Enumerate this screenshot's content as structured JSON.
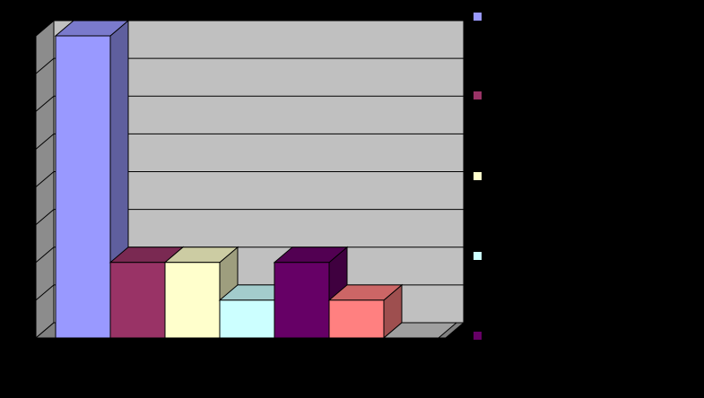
{
  "chart_data": {
    "type": "bar",
    "style": "3d-column",
    "title": "",
    "xlabel": "",
    "ylabel": "",
    "ylim": [
      0,
      8
    ],
    "grid": true,
    "legend_position": "right",
    "background_color": "#000000",
    "plot_color": "#c0c0c0",
    "categories": [
      "",
      "",
      "",
      "",
      "",
      "",
      ""
    ],
    "series": [
      {
        "values": [
          8,
          0,
          0,
          0,
          0,
          0,
          0
        ],
        "color": "#9999ff"
      },
      {
        "values": [
          0,
          2,
          0,
          0,
          0,
          0,
          0
        ],
        "color": "#993366"
      },
      {
        "values": [
          0,
          0,
          2,
          0,
          0,
          0,
          0
        ],
        "color": "#ffffcc"
      },
      {
        "values": [
          0,
          0,
          0,
          1,
          0,
          0,
          0
        ],
        "color": "#ccffff"
      },
      {
        "values": [
          0,
          0,
          0,
          0,
          2,
          0,
          0
        ],
        "color": "#660066"
      },
      {
        "values": [
          0,
          0,
          0,
          0,
          0,
          1,
          0
        ],
        "color": "#ff8080"
      },
      {
        "values": [
          0,
          0,
          0,
          0,
          0,
          0,
          0
        ],
        "color": "#0066cc"
      }
    ]
  },
  "legend": {
    "items": [
      {
        "label": "",
        "color": "#9999ff"
      },
      {
        "label": "",
        "color": "#993366"
      },
      {
        "label": "",
        "color": "#ffffcc"
      },
      {
        "label": "",
        "color": "#ccffff"
      },
      {
        "label": "",
        "color": "#660066"
      }
    ]
  }
}
